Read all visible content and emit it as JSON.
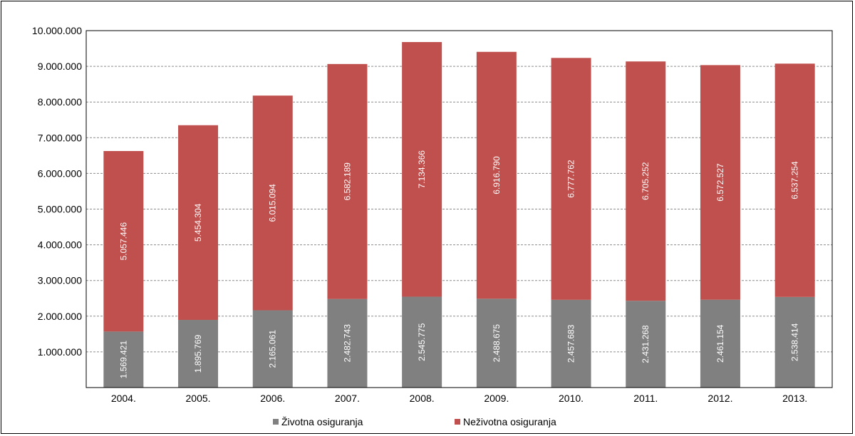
{
  "chart_data": {
    "type": "bar",
    "stacked": true,
    "categories": [
      "2004.",
      "2005.",
      "2006.",
      "2007.",
      "2008.",
      "2009.",
      "2010.",
      "2011.",
      "2012.",
      "2013."
    ],
    "series": [
      {
        "name": "Životna osiguranja",
        "color": "#808080",
        "values": [
          1569421,
          1895769,
          2165061,
          2482743,
          2545775,
          2488675,
          2457683,
          2431268,
          2461154,
          2538414
        ],
        "labels": [
          "1.569.421",
          "1.895.769",
          "2.165.061",
          "2.482.743",
          "2.545.775",
          "2.488.675",
          "2.457.683",
          "2.431.268",
          "2.461.154",
          "2.538.414"
        ]
      },
      {
        "name": "Neživotna osiguranja",
        "color": "#c0504d",
        "values": [
          5057446,
          5454304,
          6015094,
          6582189,
          7134366,
          6916790,
          6777762,
          6705252,
          6572527,
          6537254
        ],
        "labels": [
          "5.057.446",
          "5.454.304",
          "6.015.094",
          "6.582.189",
          "7.134.366",
          "6.916.790",
          "6.777.762",
          "6.705.252",
          "6.572.527",
          "6.537.254"
        ]
      }
    ],
    "y_ticks": [
      1000000,
      2000000,
      3000000,
      4000000,
      5000000,
      6000000,
      7000000,
      8000000,
      9000000,
      10000000
    ],
    "y_tick_labels": [
      "1.000.000",
      "2.000.000",
      "3.000.000",
      "4.000.000",
      "5.000.000",
      "6.000.000",
      "7.000.000",
      "8.000.000",
      "9.000.000",
      "10.000.000"
    ],
    "ylim": [
      0,
      10000000
    ],
    "grid": true,
    "legend_position": "bottom"
  }
}
